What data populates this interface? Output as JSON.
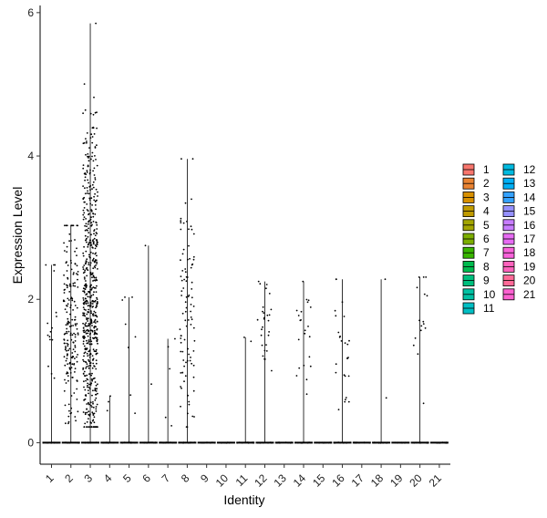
{
  "chart_data": {
    "type": "violin",
    "xlabel": "Identity",
    "ylabel": "Expression Level",
    "ylim": [
      -0.3,
      6.1
    ],
    "yticks": [
      0,
      2,
      4,
      6
    ],
    "grid": false,
    "legend_position": "right",
    "categories": [
      "1",
      "2",
      "3",
      "4",
      "5",
      "6",
      "7",
      "8",
      "9",
      "10",
      "11",
      "12",
      "13",
      "14",
      "15",
      "16",
      "17",
      "18",
      "19",
      "20",
      "21"
    ],
    "colors": [
      "#F8766D",
      "#EA8331",
      "#D89000",
      "#C09B00",
      "#A3A500",
      "#7CAE00",
      "#39B600",
      "#00BB4E",
      "#00BF7D",
      "#00C1A3",
      "#00BFC4",
      "#00BAE0",
      "#00B0F6",
      "#35A2FF",
      "#9590FF",
      "#C77CFF",
      "#E76BF3",
      "#FA62DB",
      "#FF62BC",
      "#FF6A98",
      "#FD61D1"
    ],
    "max_values": [
      2.48,
      3.03,
      5.85,
      0.65,
      2.03,
      2.75,
      1.45,
      3.96,
      0,
      0,
      1.47,
      2.25,
      0,
      2.25,
      0,
      2.28,
      0,
      2.28,
      0,
      2.31,
      0
    ],
    "expressing_cells": [
      16,
      190,
      620,
      3,
      8,
      2,
      5,
      95,
      0,
      0,
      2,
      28,
      0,
      22,
      0,
      26,
      0,
      2,
      0,
      16,
      0
    ],
    "median_nonzero": [
      1.6,
      1.75,
      2.2,
      0.63,
      1.5,
      1.5,
      0.9,
      1.9,
      0,
      0,
      1.4,
      1.75,
      0,
      1.65,
      0,
      1.5,
      0,
      1.3,
      0,
      1.8,
      0
    ]
  }
}
